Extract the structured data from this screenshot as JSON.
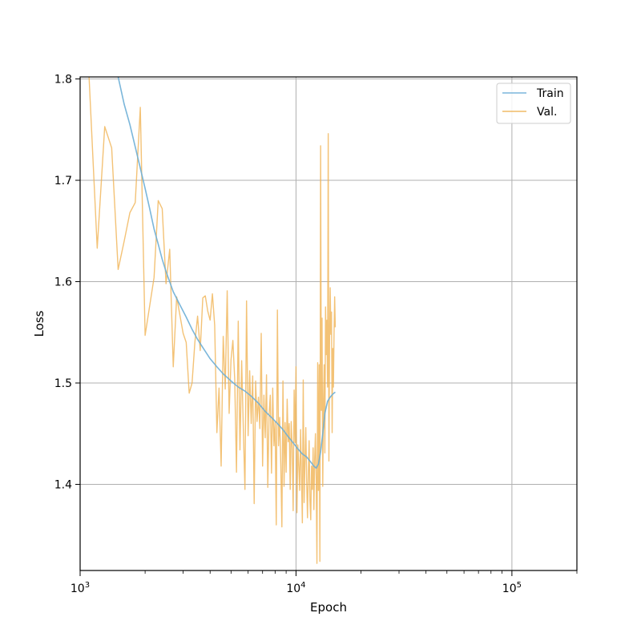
{
  "chart_data": {
    "type": "line",
    "title": "",
    "xlabel": "Epoch",
    "ylabel": "Loss",
    "xscale": "log",
    "xlim": [
      1000,
      200000
    ],
    "ylim": [
      1.315,
      1.802
    ],
    "grid": true,
    "legend_position": "top-right",
    "x_tick_labels": [
      {
        "value": 1000,
        "base": "10",
        "exp": "3"
      },
      {
        "value": 10000,
        "base": "10",
        "exp": "4"
      },
      {
        "value": 100000,
        "base": "10",
        "exp": "5"
      }
    ],
    "y_tick_labels": [
      "1.4",
      "1.5",
      "1.6",
      "1.7",
      "1.8"
    ],
    "y_ticks": [
      1.4,
      1.5,
      1.6,
      1.7,
      1.8
    ],
    "series": [
      {
        "name": "Train",
        "color": "#6baed6",
        "x": [
          1500,
          1600,
          1700,
          1800,
          1900,
          2000,
          2100,
          2200,
          2300,
          2400,
          2500,
          2700,
          2900,
          3100,
          3300,
          3500,
          3700,
          4000,
          4300,
          4600,
          5000,
          5400,
          5800,
          6200,
          6700,
          7200,
          7700,
          8200,
          8700,
          9200,
          9700,
          10200,
          10700,
          11200,
          11700,
          12100,
          12400,
          12700,
          13000,
          13300,
          13600,
          14000,
          14400,
          14800,
          15200
        ],
        "values": [
          1.802,
          1.775,
          1.755,
          1.733,
          1.712,
          1.692,
          1.672,
          1.652,
          1.637,
          1.622,
          1.61,
          1.59,
          1.577,
          1.565,
          1.553,
          1.543,
          1.535,
          1.524,
          1.516,
          1.509,
          1.502,
          1.496,
          1.492,
          1.487,
          1.48,
          1.472,
          1.466,
          1.46,
          1.454,
          1.447,
          1.441,
          1.435,
          1.43,
          1.427,
          1.422,
          1.418,
          1.416,
          1.42,
          1.432,
          1.45,
          1.47,
          1.482,
          1.486,
          1.489,
          1.491
        ]
      },
      {
        "name": "Val.",
        "color": "#f0b354",
        "x": [
          1100,
          1200,
          1300,
          1400,
          1500,
          1600,
          1700,
          1800,
          1900,
          2000,
          2200,
          2300,
          2400,
          2500,
          2600,
          2700,
          2800,
          3000,
          3100,
          3200,
          3300,
          3400,
          3500,
          3600,
          3700,
          3800,
          3900,
          4000,
          4100,
          4200,
          4300,
          4400,
          4500,
          4600,
          4700,
          4800,
          4900,
          5000,
          5100,
          5200,
          5300,
          5400,
          5500,
          5600,
          5700,
          5800,
          5900,
          6000,
          6100,
          6200,
          6300,
          6400,
          6500,
          6600,
          6700,
          6800,
          6900,
          7000,
          7100,
          7200,
          7300,
          7400,
          7500,
          7600,
          7700,
          7800,
          7900,
          8000,
          8100,
          8200,
          8300,
          8400,
          8500,
          8600,
          8700,
          8800,
          8900,
          9000,
          9100,
          9200,
          9300,
          9400,
          9500,
          9600,
          9700,
          9800,
          9900,
          10000,
          10100,
          10200,
          10300,
          10400,
          10500,
          10600,
          10700,
          10800,
          10900,
          11000,
          11100,
          11200,
          11300,
          11400,
          11500,
          11600,
          11700,
          11800,
          11900,
          12000,
          12100,
          12200,
          12300,
          12400,
          12500,
          12600,
          12700,
          12800,
          12900,
          13000,
          13100,
          13200,
          13300,
          13400,
          13500,
          13600,
          13700,
          13800,
          13900,
          14000,
          14100,
          14200,
          14300,
          14400,
          14500,
          14600,
          14700,
          14800,
          14900,
          15000,
          15100,
          15200
        ],
        "values": [
          1.802,
          1.633,
          1.753,
          1.732,
          1.612,
          1.64,
          1.668,
          1.678,
          1.772,
          1.547,
          1.604,
          1.68,
          1.672,
          1.598,
          1.632,
          1.516,
          1.585,
          1.549,
          1.54,
          1.49,
          1.5,
          1.54,
          1.566,
          1.532,
          1.584,
          1.586,
          1.571,
          1.562,
          1.588,
          1.557,
          1.451,
          1.495,
          1.418,
          1.546,
          1.494,
          1.591,
          1.47,
          1.523,
          1.542,
          1.504,
          1.412,
          1.561,
          1.434,
          1.522,
          1.455,
          1.395,
          1.581,
          1.448,
          1.512,
          1.46,
          1.507,
          1.381,
          1.502,
          1.462,
          1.486,
          1.455,
          1.549,
          1.418,
          1.488,
          1.446,
          1.508,
          1.397,
          1.468,
          1.488,
          1.411,
          1.495,
          1.438,
          1.462,
          1.36,
          1.572,
          1.438,
          1.466,
          1.42,
          1.358,
          1.502,
          1.398,
          1.461,
          1.412,
          1.484,
          1.442,
          1.46,
          1.395,
          1.462,
          1.436,
          1.374,
          1.493,
          1.441,
          1.516,
          1.372,
          1.439,
          1.418,
          1.394,
          1.454,
          1.408,
          1.362,
          1.503,
          1.382,
          1.423,
          1.456,
          1.404,
          1.367,
          1.41,
          1.443,
          1.384,
          1.365,
          1.418,
          1.395,
          1.436,
          1.375,
          1.425,
          1.45,
          1.405,
          1.322,
          1.52,
          1.394,
          1.518,
          1.324,
          1.734,
          1.473,
          1.564,
          1.398,
          1.48,
          1.518,
          1.431,
          1.575,
          1.528,
          1.562,
          1.496,
          1.746,
          1.423,
          1.542,
          1.594,
          1.548,
          1.57,
          1.451,
          1.534,
          1.496,
          1.548,
          1.585,
          1.555
        ]
      }
    ]
  }
}
